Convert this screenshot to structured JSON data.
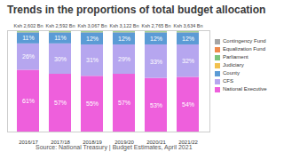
{
  "chart_data": {
    "type": "bar",
    "title": "Trends in the proportions of total budget allocation",
    "caption": "Source: National Treasury | Budget Estimates, April 2021",
    "categories": [
      "2016/17",
      "2017/18",
      "2018/19",
      "2019/20",
      "2020/21",
      "2021/22"
    ],
    "stacked": true,
    "data_labels": true,
    "tick_labels": "x",
    "grid": false,
    "legend": "right",
    "ylim": [
      0,
      100
    ],
    "yticks": [],
    "totals": [
      2602,
      2592,
      3067,
      3122,
      2765,
      3634
    ],
    "total_labels": [
      "Ksh 2,602 Bn",
      "Ksh 2,592 Bn",
      "Ksh 3,067 Bn",
      "Ksh 3,122 Bn",
      "Ksh 2,765 Bn",
      "Ksh 3,634 Bn"
    ],
    "series": [
      {
        "name": "National Executive",
        "color": "#ee5fdc",
        "values": [
          61,
          57,
          55,
          57,
          53,
          54
        ],
        "value_labels": [
          "61%",
          "57%",
          "55%",
          "57%",
          "53%",
          "54%"
        ]
      },
      {
        "name": "CFS",
        "color": "#b6a6ef",
        "values": [
          26,
          30,
          31,
          29,
          33,
          32
        ],
        "value_labels": [
          "26%",
          "30%",
          "31%",
          "29%",
          "33%",
          "32%"
        ]
      },
      {
        "name": "County",
        "color": "#5b9bd5",
        "values": [
          11,
          11,
          12,
          12,
          12,
          12
        ],
        "value_labels": [
          "11%",
          "11%",
          "12%",
          "12%",
          "12%",
          "12%"
        ]
      },
      {
        "name": "Judiciary",
        "color": "#f2c14e",
        "values": [
          0.5,
          0.5,
          0.5,
          0.5,
          0.5,
          0.5
        ]
      },
      {
        "name": "Parliament",
        "color": "#7cc47c",
        "values": [
          1,
          1,
          1,
          1,
          1,
          1
        ]
      },
      {
        "name": "Equalization Fund",
        "color": "#f08a4b",
        "values": [
          0.1,
          0.1,
          0.1,
          0.1,
          0.1,
          0.1
        ]
      },
      {
        "name": "Contingency Fund",
        "color": "#a5a5a5",
        "values": [
          0.1,
          0.1,
          0.1,
          0.1,
          0.1,
          0.1
        ]
      }
    ]
  }
}
